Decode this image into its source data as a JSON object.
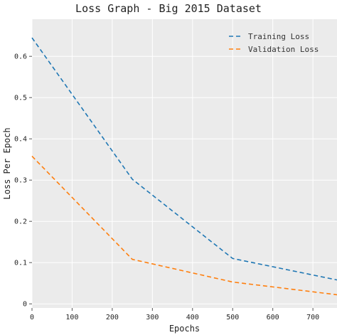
{
  "chart_data": {
    "type": "line",
    "title": "Loss Graph - Big 2015 Dataset",
    "xlabel": "Epochs",
    "ylabel": "Loss Per Epoch",
    "xlim": [
      0,
      760
    ],
    "ylim": [
      -0.01,
      0.69
    ],
    "xticks": [
      0,
      100,
      200,
      300,
      400,
      500,
      600,
      700
    ],
    "yticks": [
      0,
      0.1,
      0.2,
      0.3,
      0.4,
      0.5,
      0.6
    ],
    "grid": true,
    "legend_position": "top-right",
    "series": [
      {
        "name": "Training Loss",
        "color": "#1f77b4",
        "line_style": "dashed",
        "x": [
          0,
          250,
          500,
          760
        ],
        "y": [
          0.645,
          0.302,
          0.11,
          0.058
        ]
      },
      {
        "name": "Validation Loss",
        "color": "#ff7f0e",
        "line_style": "dashed",
        "x": [
          0,
          250,
          500,
          760
        ],
        "y": [
          0.358,
          0.108,
          0.053,
          0.022
        ]
      }
    ]
  }
}
